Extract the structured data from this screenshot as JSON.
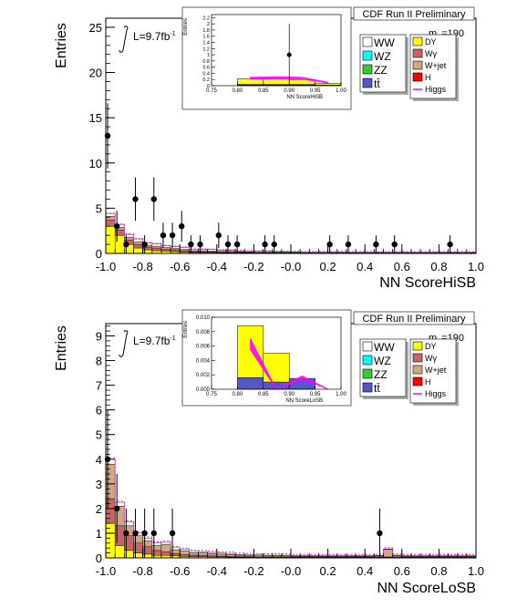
{
  "chart_data": [
    {
      "type": "bar",
      "title": "CDF Run II Preliminary",
      "xlabel": "NN ScoreHiSB",
      "ylabel": "Entries",
      "xlim": [
        -1.0,
        1.0
      ],
      "ylim": [
        0,
        26
      ],
      "yticks": [
        0,
        5,
        10,
        15,
        20,
        25
      ],
      "xticks": [
        -1.0,
        -0.8,
        -0.6,
        -0.4,
        -0.2,
        -0.0,
        0.2,
        0.4,
        0.6,
        0.8,
        1.0
      ],
      "lumi_label": "L=9.7fb",
      "lumi_sup": "-1",
      "mass_label": "m",
      "mass_sub": "H",
      "mass_value": "=190",
      "bin_edges_start": -1.0,
      "bin_width": 0.05,
      "stack_order": [
        "DY",
        "Wγ",
        "W+jet",
        "WW"
      ],
      "stack": {
        "DY": [
          3.0,
          2.0,
          1.0,
          0.6,
          0.4,
          0.3,
          0.25,
          0.2,
          0.15,
          0.1,
          0.1,
          0.1,
          0.08,
          0.08,
          0.07,
          0.06,
          0.05,
          0.05,
          0.04,
          0.04,
          0.04,
          0.03,
          0.03,
          0.03,
          0.03,
          0.03,
          0.02,
          0.02,
          0.02,
          0.02,
          0.02,
          0.02,
          0.02,
          0.02,
          0.02,
          0.02,
          0.02,
          0.02,
          0.02,
          0.02
        ],
        "Wγ": [
          0.7,
          0.6,
          0.5,
          0.4,
          0.3,
          0.3,
          0.2,
          0.2,
          0.15,
          0.1,
          0.1,
          0.08,
          0.07,
          0.06,
          0.05,
          0.05,
          0.04,
          0.04,
          0.03,
          0.03,
          0.03,
          0.02,
          0.02,
          0.02,
          0.02,
          0.02,
          0.02,
          0.02,
          0.02,
          0.02,
          0.02,
          0.02,
          0.02,
          0.02,
          0.02,
          0.02,
          0.02,
          0.02,
          0.02,
          0.02
        ],
        "W+jet": [
          0.4,
          0.3,
          0.3,
          0.3,
          0.2,
          0.2,
          0.2,
          0.15,
          0.15,
          0.1,
          0.1,
          0.1,
          0.08,
          0.08,
          0.07,
          0.06,
          0.05,
          0.05,
          0.05,
          0.05,
          0.04,
          0.04,
          0.04,
          0.04,
          0.04,
          0.04,
          0.04,
          0.04,
          0.04,
          0.04,
          0.04,
          0.04,
          0.04,
          0.04,
          0.04,
          0.04,
          0.04,
          0.04,
          0.04,
          0.04
        ],
        "WW": [
          0.3,
          0.3,
          0.3,
          0.3,
          0.25,
          0.25,
          0.2,
          0.2,
          0.2,
          0.15,
          0.15,
          0.15,
          0.12,
          0.12,
          0.1,
          0.1,
          0.1,
          0.1,
          0.08,
          0.08,
          0.08,
          0.08,
          0.07,
          0.07,
          0.07,
          0.07,
          0.07,
          0.07,
          0.07,
          0.07,
          0.07,
          0.07,
          0.07,
          0.07,
          0.07,
          0.07,
          0.07,
          0.07,
          0.07,
          0.07
        ]
      },
      "data_points": [
        {
          "x": -0.99,
          "y": 13,
          "err": 3.6
        },
        {
          "x": -0.94,
          "y": 3,
          "err": 1.7
        },
        {
          "x": -0.89,
          "y": 1,
          "err": 1.0
        },
        {
          "x": -0.84,
          "y": 6,
          "err": 2.4
        },
        {
          "x": -0.79,
          "y": 1,
          "err": 1.0
        },
        {
          "x": -0.74,
          "y": 6,
          "err": 2.4
        },
        {
          "x": -0.69,
          "y": 2,
          "err": 1.4
        },
        {
          "x": -0.64,
          "y": 2,
          "err": 1.4
        },
        {
          "x": -0.59,
          "y": 3,
          "err": 1.7
        },
        {
          "x": -0.54,
          "y": 1,
          "err": 1.0
        },
        {
          "x": -0.49,
          "y": 1,
          "err": 1.0
        },
        {
          "x": -0.39,
          "y": 2,
          "err": 1.4
        },
        {
          "x": -0.34,
          "y": 1,
          "err": 1.0
        },
        {
          "x": -0.29,
          "y": 1,
          "err": 1.0
        },
        {
          "x": -0.14,
          "y": 1,
          "err": 1.0
        },
        {
          "x": -0.09,
          "y": 1,
          "err": 1.0
        },
        {
          "x": 0.21,
          "y": 1,
          "err": 1.0
        },
        {
          "x": 0.31,
          "y": 1,
          "err": 1.0
        },
        {
          "x": 0.46,
          "y": 1,
          "err": 1.0
        },
        {
          "x": 0.56,
          "y": 1,
          "err": 1.0
        },
        {
          "x": 0.86,
          "y": 1,
          "err": 1.0
        }
      ],
      "inset": {
        "xlabel": "NN ScoreHiSB",
        "ylabel": "Entries",
        "xlim": [
          0.75,
          1.0
        ],
        "ylim": [
          0,
          2.3
        ],
        "yticks": [
          0,
          0.2,
          0.4,
          0.6,
          0.8,
          1.0,
          1.2,
          1.4,
          1.6,
          1.8,
          2.0,
          2.2
        ],
        "ytick_labels": [
          "0",
          "0.2",
          "0.4",
          "0.6",
          "0.8",
          "1",
          "1.2",
          "1.4",
          "1.6",
          "1.8",
          "2",
          "2.2"
        ],
        "xticks": [
          0.75,
          0.8,
          0.85,
          0.9,
          0.95,
          1.0
        ],
        "xtick_labels": [
          "0.75",
          "0.80",
          "0.85",
          "0.90",
          "0.95",
          "1.00"
        ],
        "stack_bins": [
          {
            "x0": 0.8,
            "x1": 0.85,
            "DY": 0.18,
            "Wγ": 0.02,
            "W+jet": 0.02
          },
          {
            "x0": 0.85,
            "x1": 0.9,
            "DY": 0.18,
            "Wγ": 0.02,
            "W+jet": 0.02
          },
          {
            "x0": 0.9,
            "x1": 0.95,
            "DY": 0.16,
            "Wγ": 0.02,
            "W+jet": 0.02
          },
          {
            "x0": 0.95,
            "x1": 1.0,
            "DY": 0.05,
            "Wγ": 0.01,
            "W+jet": 0.01
          }
        ],
        "higgs_band": [
          {
            "x": 0.825,
            "y": 0.25
          },
          {
            "x": 0.875,
            "y": 0.27
          },
          {
            "x": 0.925,
            "y": 0.25
          },
          {
            "x": 0.975,
            "y": 0.1
          }
        ],
        "data_points": [
          {
            "x": 0.9,
            "y": 1.0,
            "err": 1.0
          }
        ]
      }
    },
    {
      "type": "bar",
      "title": "CDF Run II Preliminary",
      "xlabel": "NN ScoreLoSB",
      "ylabel": "Entries",
      "xlim": [
        -1.0,
        1.0
      ],
      "ylim": [
        0,
        9.5
      ],
      "yticks": [
        0,
        1,
        2,
        3,
        4,
        5,
        6,
        7,
        8,
        9
      ],
      "xticks": [
        -1.0,
        -0.8,
        -0.6,
        -0.4,
        -0.2,
        -0.0,
        0.2,
        0.4,
        0.6,
        0.8,
        1.0
      ],
      "lumi_label": "L=9.7fb",
      "lumi_sup": "-1",
      "mass_label": "m",
      "mass_sub": "H",
      "mass_value": "=190",
      "bin_edges_start": -1.0,
      "bin_width": 0.05,
      "stack_order": [
        "DY",
        "Wγ",
        "W+jet",
        "WW"
      ],
      "stack": {
        "DY": [
          1.4,
          0.5,
          0.3,
          0.2,
          0.15,
          0.1,
          0.1,
          0.08,
          0.06,
          0.05,
          0.05,
          0.04,
          0.04,
          0.03,
          0.03,
          0.03,
          0.02,
          0.02,
          0.02,
          0.02,
          0.02,
          0.02,
          0.02,
          0.02,
          0.02,
          0.02,
          0.02,
          0.02,
          0.02,
          0.02,
          0.02,
          0.02,
          0.02,
          0.02,
          0.02,
          0.02,
          0.02,
          0.02,
          0.02,
          0.02
        ],
        "Wγ": [
          1.0,
          0.8,
          0.6,
          0.4,
          0.3,
          0.2,
          0.15,
          0.1,
          0.08,
          0.06,
          0.05,
          0.04,
          0.03,
          0.03,
          0.02,
          0.02,
          0.02,
          0.02,
          0.02,
          0.02,
          0.02,
          0.02,
          0.02,
          0.02,
          0.02,
          0.02,
          0.02,
          0.02,
          0.02,
          0.02,
          0.02,
          0.02,
          0.02,
          0.02,
          0.02,
          0.02,
          0.02,
          0.02,
          0.02,
          0.02
        ],
        "W+jet": [
          1.4,
          0.8,
          0.4,
          0.3,
          0.25,
          0.2,
          0.3,
          0.15,
          0.15,
          0.1,
          0.1,
          0.1,
          0.08,
          0.08,
          0.06,
          0.05,
          0.05,
          0.04,
          0.04,
          0.04,
          0.03,
          0.03,
          0.03,
          0.03,
          0.03,
          0.03,
          0.03,
          0.03,
          0.03,
          0.04,
          0.3,
          0.05,
          0.03,
          0.03,
          0.03,
          0.03,
          0.03,
          0.03,
          0.03,
          0.03
        ],
        "WW": [
          0.2,
          0.15,
          0.15,
          0.1,
          0.1,
          0.1,
          0.08,
          0.08,
          0.06,
          0.05,
          0.05,
          0.04,
          0.04,
          0.04,
          0.03,
          0.03,
          0.03,
          0.03,
          0.03,
          0.03,
          0.02,
          0.02,
          0.02,
          0.02,
          0.02,
          0.02,
          0.02,
          0.02,
          0.02,
          0.02,
          0.02,
          0.02,
          0.02,
          0.02,
          0.02,
          0.02,
          0.02,
          0.02,
          0.02,
          0.02
        ]
      },
      "data_points": [
        {
          "x": -0.99,
          "y": 4,
          "err": 2.0
        },
        {
          "x": -0.94,
          "y": 2,
          "err": 1.4
        },
        {
          "x": -0.89,
          "y": 1,
          "err": 1.0
        },
        {
          "x": -0.84,
          "y": 1,
          "err": 1.0
        },
        {
          "x": -0.79,
          "y": 1,
          "err": 1.0
        },
        {
          "x": -0.74,
          "y": 1,
          "err": 1.0
        },
        {
          "x": -0.64,
          "y": 1,
          "err": 1.0
        },
        {
          "x": 0.48,
          "y": 1,
          "err": 1.0
        }
      ],
      "inset": {
        "xlabel": "NN ScoreLoSB",
        "ylabel": "Entries",
        "xlim": [
          0.75,
          1.0
        ],
        "ylim": [
          0,
          0.01
        ],
        "yticks": [
          0,
          0.002,
          0.004,
          0.006,
          0.008,
          0.01
        ],
        "ytick_labels": [
          "0.000",
          "0.002",
          "0.004",
          "0.006",
          "0.008",
          "0.010"
        ],
        "xticks": [
          0.75,
          0.8,
          0.85,
          0.9,
          0.95,
          1.0
        ],
        "xtick_labels": [
          "0.75",
          "0.80",
          "0.85",
          "0.90",
          "0.95",
          "1.00"
        ],
        "stack_bins": [
          {
            "x0": 0.8,
            "x1": 0.85,
            "WW": 0.0016,
            "DY": 0.0072,
            "Wγ": 0.0,
            "W+jet": 0.0
          },
          {
            "x0": 0.85,
            "x1": 0.9,
            "WW": 0.001,
            "DY": 0.004,
            "Wγ": 0.0,
            "W+jet": 0.0
          },
          {
            "x0": 0.9,
            "x1": 0.95,
            "WW": 0.0015,
            "DY": 0.0,
            "Wγ": 0.0,
            "W+jet": 0.0
          },
          {
            "x0": 0.95,
            "x1": 1.0,
            "WW": 0.0,
            "DY": 0.0,
            "Wγ": 0.0,
            "W+jet": 0.0
          }
        ],
        "higgs_band": [
          {
            "x": 0.825,
            "y": 0.0065
          },
          {
            "x": 0.875,
            "y": 0.0
          },
          {
            "x": 0.925,
            "y": 0.0017
          },
          {
            "x": 0.975,
            "y": 0.0
          }
        ],
        "data_points": []
      }
    }
  ],
  "legend": {
    "left": [
      "WW",
      "WZ",
      "ZZ",
      "tt̄"
    ],
    "right": [
      "DY",
      "Wγ",
      "W+jet",
      "H",
      "Higgs"
    ]
  },
  "colors": {
    "WW": "#ffffff",
    "WZ": "#00ffff",
    "ZZ": "#33cc33",
    "tt": "#5555cc",
    "DY": "#ffff00",
    "Wγ": "#c86464",
    "W+jet": "#d2a882",
    "H": "#ff0000",
    "Higgs": "#ff00ff"
  }
}
